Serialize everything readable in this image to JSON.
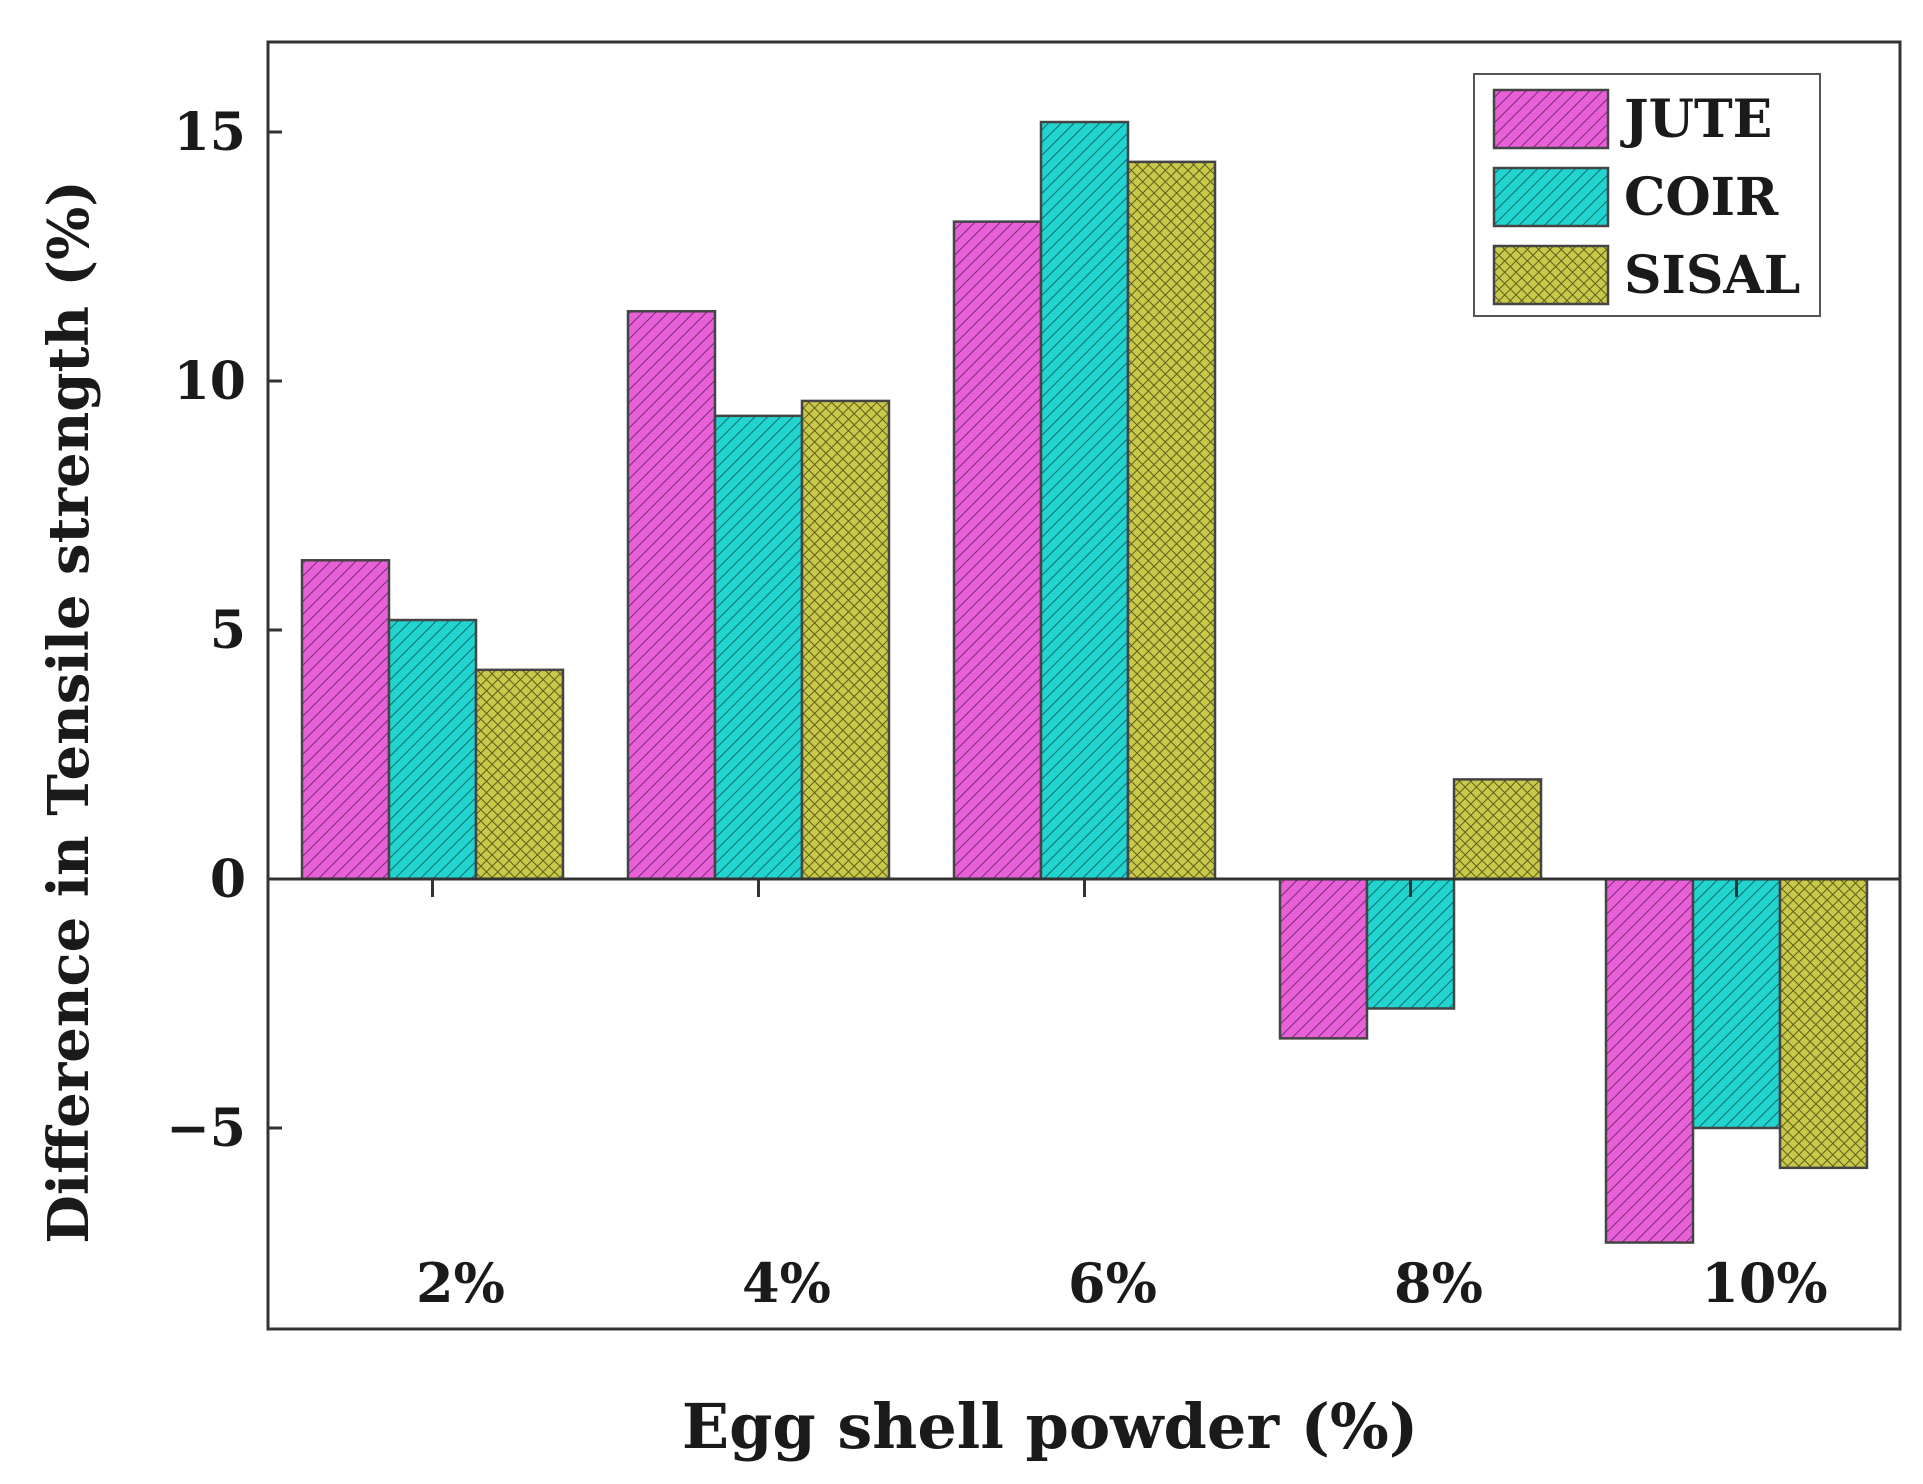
{
  "chart_data": {
    "type": "bar",
    "xlabel": "Egg shell powder (%)",
    "ylabel": "Difference in Tensile strength (%)",
    "categories": [
      "2%",
      "4%",
      "6%",
      "8%",
      "10%"
    ],
    "ylim": [
      -9,
      17
    ],
    "yticks": [
      -5,
      0,
      5,
      10,
      15
    ],
    "ytick_labels": [
      "−5",
      "0",
      "5",
      "10",
      "15"
    ],
    "series": [
      {
        "name": "JUTE",
        "color": "#e860d8",
        "pattern": "diagonal-hatch",
        "values": [
          6.4,
          11.4,
          13.2,
          -3.2,
          -7.3
        ]
      },
      {
        "name": "COIR",
        "color": "#22d4d0",
        "pattern": "diagonal-hatch",
        "values": [
          5.2,
          9.3,
          15.2,
          -2.6,
          -5.0
        ]
      },
      {
        "name": "SISAL",
        "color": "#c8c84a",
        "pattern": "crosshatch",
        "values": [
          4.2,
          9.6,
          14.4,
          2.0,
          -5.8
        ]
      }
    ],
    "legend_position": "top-right",
    "grid": false
  }
}
